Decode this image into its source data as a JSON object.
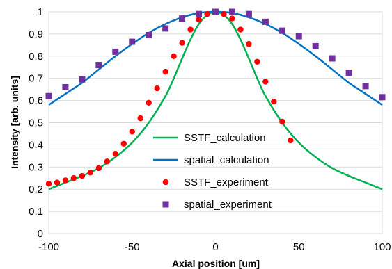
{
  "chart_data": {
    "type": "scatter",
    "title": "",
    "xlabel": "Axial position  [um]",
    "ylabel": "Intensity [arb. units]",
    "xlim": [
      -100,
      100
    ],
    "ylim": [
      0,
      1
    ],
    "x_ticks": [
      "-100",
      "-50",
      "0",
      "50",
      "100"
    ],
    "y_ticks": [
      "0",
      "0.1",
      "0.2",
      "0.3",
      "0.4",
      "0.5",
      "0.6",
      "0.7",
      "0.8",
      "0.9",
      "1"
    ],
    "grid": "horizontal",
    "legend_position": "center-right inside plot",
    "series": [
      {
        "name": "SSTF_calculation",
        "kind": "line",
        "color": "#00b050",
        "x": [
          -100,
          -90,
          -80,
          -70,
          -60,
          -50,
          -40,
          -30,
          -25,
          -20,
          -15,
          -10,
          -5,
          0,
          5,
          10,
          15,
          20,
          25,
          30,
          40,
          50,
          60,
          70,
          80,
          90,
          100
        ],
        "y": [
          0.2,
          0.23,
          0.26,
          0.295,
          0.345,
          0.41,
          0.5,
          0.62,
          0.7,
          0.79,
          0.875,
          0.945,
          0.985,
          1.0,
          0.985,
          0.945,
          0.875,
          0.79,
          0.7,
          0.62,
          0.5,
          0.41,
          0.345,
          0.295,
          0.26,
          0.23,
          0.2
        ]
      },
      {
        "name": "spatial_calculation",
        "kind": "line",
        "color": "#0070c0",
        "x": [
          -100,
          -90,
          -80,
          -70,
          -60,
          -50,
          -40,
          -30,
          -20,
          -10,
          0,
          10,
          20,
          30,
          40,
          50,
          60,
          70,
          80,
          90,
          100
        ],
        "y": [
          0.58,
          0.63,
          0.68,
          0.74,
          0.8,
          0.855,
          0.905,
          0.945,
          0.975,
          0.995,
          1.0,
          0.995,
          0.975,
          0.945,
          0.905,
          0.855,
          0.8,
          0.74,
          0.68,
          0.63,
          0.58
        ]
      },
      {
        "name": "SSTF_experiment",
        "kind": "marker-circle",
        "color": "#ff0000",
        "x": [
          -100,
          -95,
          -90,
          -85,
          -80,
          -75,
          -70,
          -65,
          -60,
          -55,
          -50,
          -45,
          -40,
          -35,
          -30,
          -25,
          -20,
          -15,
          -10,
          -5,
          0,
          5,
          10,
          15,
          20,
          25,
          30,
          35,
          40,
          45
        ],
        "y": [
          0.225,
          0.23,
          0.24,
          0.25,
          0.26,
          0.275,
          0.295,
          0.325,
          0.36,
          0.405,
          0.46,
          0.52,
          0.59,
          0.655,
          0.73,
          0.8,
          0.86,
          0.92,
          0.965,
          0.99,
          1.0,
          0.99,
          0.97,
          0.92,
          0.855,
          0.775,
          0.685,
          0.595,
          0.505,
          0.42
        ]
      },
      {
        "name": "spatial_experiment",
        "kind": "marker-square",
        "color": "#7030a0",
        "x": [
          -100,
          -90,
          -80,
          -70,
          -60,
          -50,
          -40,
          -30,
          -20,
          -10,
          0,
          10,
          20,
          30,
          40,
          50,
          60,
          70,
          80,
          90,
          100
        ],
        "y": [
          0.62,
          0.66,
          0.695,
          0.76,
          0.82,
          0.865,
          0.895,
          0.925,
          0.97,
          0.99,
          1.0,
          1.0,
          0.99,
          0.955,
          0.915,
          0.89,
          0.845,
          0.79,
          0.725,
          0.665,
          0.615
        ]
      }
    ]
  }
}
